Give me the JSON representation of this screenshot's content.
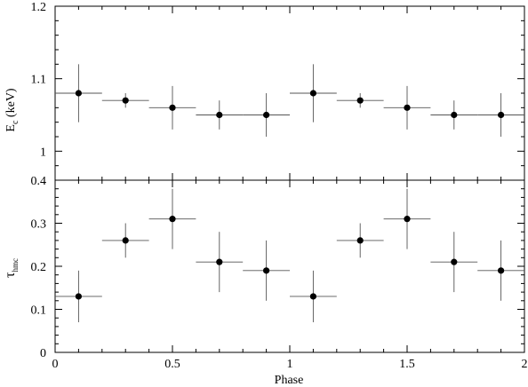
{
  "chart_data": [
    {
      "type": "scatter",
      "panel": "top",
      "ylabel": "E",
      "ylabel_sub": "c",
      "ylabel_unit": " (keV)",
      "xlim": [
        0,
        2
      ],
      "ylim": [
        0.96,
        1.2
      ],
      "yticks": [
        {
          "v": 1,
          "label": "1"
        },
        {
          "v": 1.1,
          "label": "1.1"
        },
        {
          "v": 1.2,
          "label": "1.2"
        }
      ],
      "x": [
        0.1,
        0.3,
        0.5,
        0.7,
        0.9,
        1.1,
        1.3,
        1.5,
        1.7,
        1.9
      ],
      "xerr": 0.1,
      "y": [
        1.08,
        1.07,
        1.06,
        1.05,
        1.05,
        1.08,
        1.07,
        1.06,
        1.05,
        1.05
      ],
      "ylo": [
        1.04,
        1.06,
        1.03,
        1.03,
        1.02,
        1.04,
        1.06,
        1.03,
        1.03,
        1.02
      ],
      "yhi": [
        1.12,
        1.08,
        1.09,
        1.07,
        1.08,
        1.12,
        1.08,
        1.09,
        1.07,
        1.08
      ]
    },
    {
      "type": "scatter",
      "panel": "bottom",
      "xlabel": "Phase",
      "ylabel": "τ",
      "ylabel_sub": "hmc",
      "xlim": [
        0,
        2
      ],
      "ylim": [
        0,
        0.4
      ],
      "xticks": [
        {
          "v": 0,
          "label": "0"
        },
        {
          "v": 0.5,
          "label": "0.5"
        },
        {
          "v": 1,
          "label": "1"
        },
        {
          "v": 1.5,
          "label": "1.5"
        },
        {
          "v": 2,
          "label": "2"
        }
      ],
      "yticks": [
        {
          "v": 0,
          "label": "0"
        },
        {
          "v": 0.1,
          "label": "0.1"
        },
        {
          "v": 0.2,
          "label": "0.2"
        },
        {
          "v": 0.3,
          "label": "0.3"
        },
        {
          "v": 0.4,
          "label": "0.4"
        }
      ],
      "x": [
        0.1,
        0.3,
        0.5,
        0.7,
        0.9,
        1.1,
        1.3,
        1.5,
        1.7,
        1.9
      ],
      "xerr": 0.1,
      "y": [
        0.13,
        0.26,
        0.31,
        0.21,
        0.19,
        0.13,
        0.26,
        0.31,
        0.21,
        0.19
      ],
      "ylo": [
        0.07,
        0.22,
        0.24,
        0.14,
        0.12,
        0.07,
        0.22,
        0.24,
        0.14,
        0.12
      ],
      "yhi": [
        0.19,
        0.3,
        0.38,
        0.28,
        0.26,
        0.19,
        0.3,
        0.38,
        0.28,
        0.26
      ]
    }
  ]
}
